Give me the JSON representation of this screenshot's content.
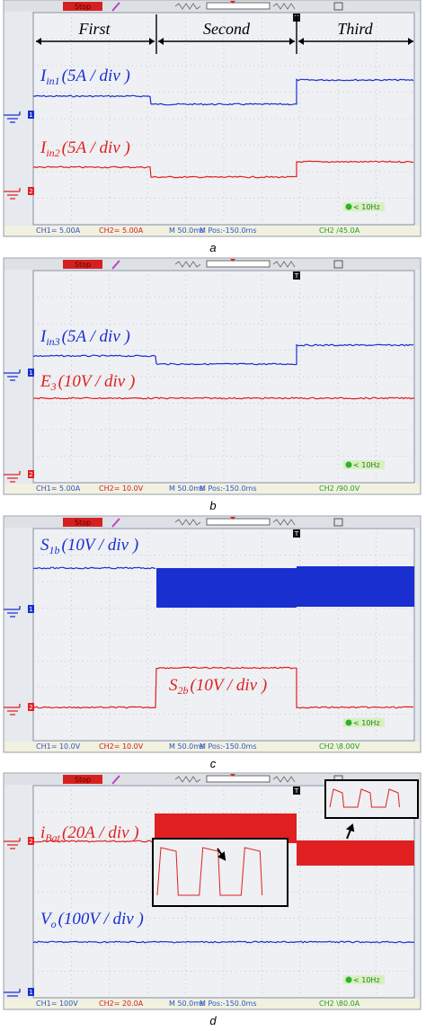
{
  "panels": [
    {
      "status": "Stop",
      "trigger_marker": "T",
      "regions": [
        "First",
        "Second",
        "Third"
      ],
      "signals": [
        {
          "symbol": "I",
          "subscript": "in1",
          "scale": "(5A / div )",
          "color": "#1a2fd0"
        },
        {
          "symbol": "I",
          "subscript": "in2",
          "scale": "(5A / div )",
          "color": "#e02020"
        }
      ],
      "channels": [
        "1",
        "2"
      ],
      "footer": {
        "ch1": "CH1= 5.00A",
        "ch2": "CH2= 5.00A",
        "time": "M 50.0ms",
        "position": "M Pos:-150.0ms",
        "trigger": "CH2 /45.0A",
        "frequency": "< 10Hz"
      },
      "caption": "a"
    },
    {
      "status": "Stop",
      "trigger_marker": "T",
      "signals": [
        {
          "symbol": "I",
          "subscript": "in3",
          "scale": "(5A / div )",
          "color": "#1a2fd0"
        },
        {
          "symbol": "E",
          "subscript": "3",
          "scale": "(10V / div )",
          "color": "#e02020"
        }
      ],
      "channels": [
        "1",
        "2"
      ],
      "footer": {
        "ch1": "CH1= 5.00A",
        "ch2": "CH2= 10.0V",
        "time": "M 50.0ms",
        "position": "M Pos:-150.0ms",
        "trigger": "CH2 /90.0V",
        "frequency": "< 10Hz"
      },
      "caption": "b"
    },
    {
      "status": "Stop",
      "trigger_marker": "T",
      "signals": [
        {
          "symbol": "S",
          "subscript": "1b",
          "scale": "(10V / div )",
          "color": "#1a2fd0"
        },
        {
          "symbol": "S",
          "subscript": "2b",
          "scale": "(10V / div )",
          "color": "#e02020"
        }
      ],
      "channels": [
        "1",
        "2"
      ],
      "footer": {
        "ch1": "CH1= 10.0V",
        "ch2": "CH2= 10.0V",
        "time": "M 50.0ms",
        "position": "M Pos:-150.0ms",
        "trigger": "CH2 \\8.00V",
        "frequency": "< 10Hz"
      },
      "caption": "c"
    },
    {
      "status": "Stop",
      "trigger_marker": "T",
      "signals": [
        {
          "symbol": "i",
          "subscript": "Bat",
          "scale": "(20A / div )",
          "color": "#e02020"
        },
        {
          "symbol": "V",
          "subscript": "o",
          "scale": "(100V / div )",
          "color": "#1a2fd0"
        }
      ],
      "channels": [
        "1",
        "2"
      ],
      "footer": {
        "ch1": "CH1= 100V",
        "ch2": "CH2= 20.0A",
        "time": "M 50.0ms",
        "position": "M Pos:-150.0ms",
        "trigger": "CH2 \\80.0A",
        "frequency": "< 10Hz"
      },
      "caption": "d"
    }
  ]
}
